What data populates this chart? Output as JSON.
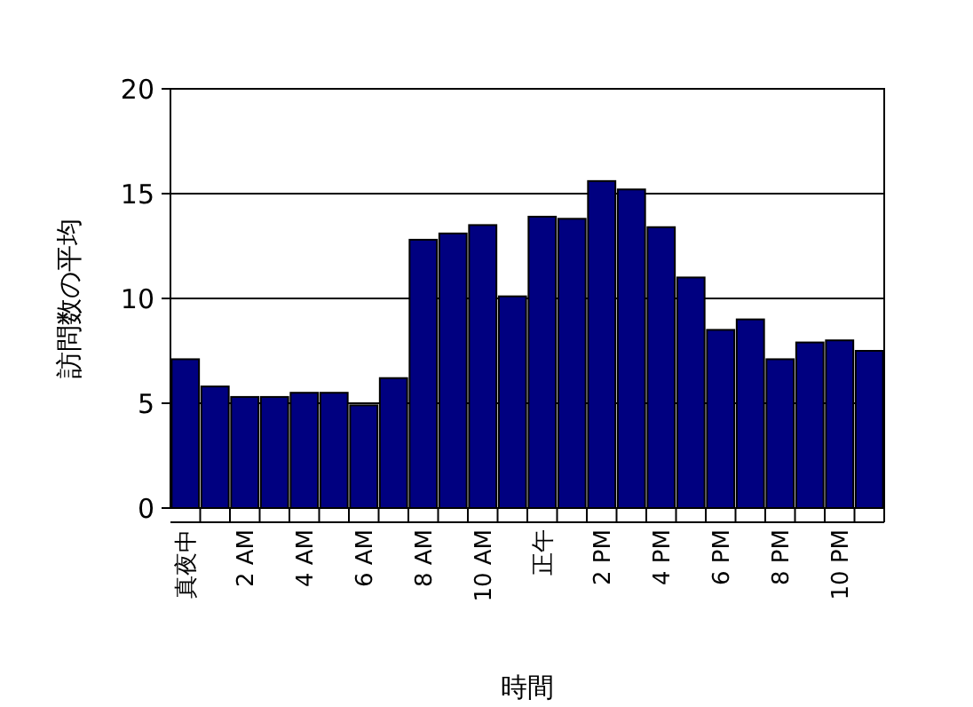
{
  "chart_data": {
    "type": "bar",
    "xlabel": "時間",
    "ylabel": "訪問数の平均",
    "categories": [
      "真夜中",
      null,
      "2 AM",
      null,
      "4 AM",
      null,
      "6 AM",
      null,
      "8 AM",
      null,
      "10 AM",
      null,
      "正午",
      null,
      "2 PM",
      null,
      "4 PM",
      null,
      "6 PM",
      null,
      "8 PM",
      null,
      "10 PM",
      null
    ],
    "values": [
      7.1,
      5.8,
      5.3,
      5.3,
      5.5,
      5.5,
      4.9,
      6.2,
      12.8,
      13.1,
      13.5,
      10.1,
      13.9,
      13.8,
      15.6,
      15.2,
      13.4,
      11.0,
      8.5,
      9.0,
      7.1,
      7.9,
      8.0,
      7.5
    ],
    "color": "#000080",
    "ylim": [
      0,
      20
    ],
    "yticks": [
      0,
      5,
      10,
      15,
      20
    ],
    "grid": "y"
  }
}
